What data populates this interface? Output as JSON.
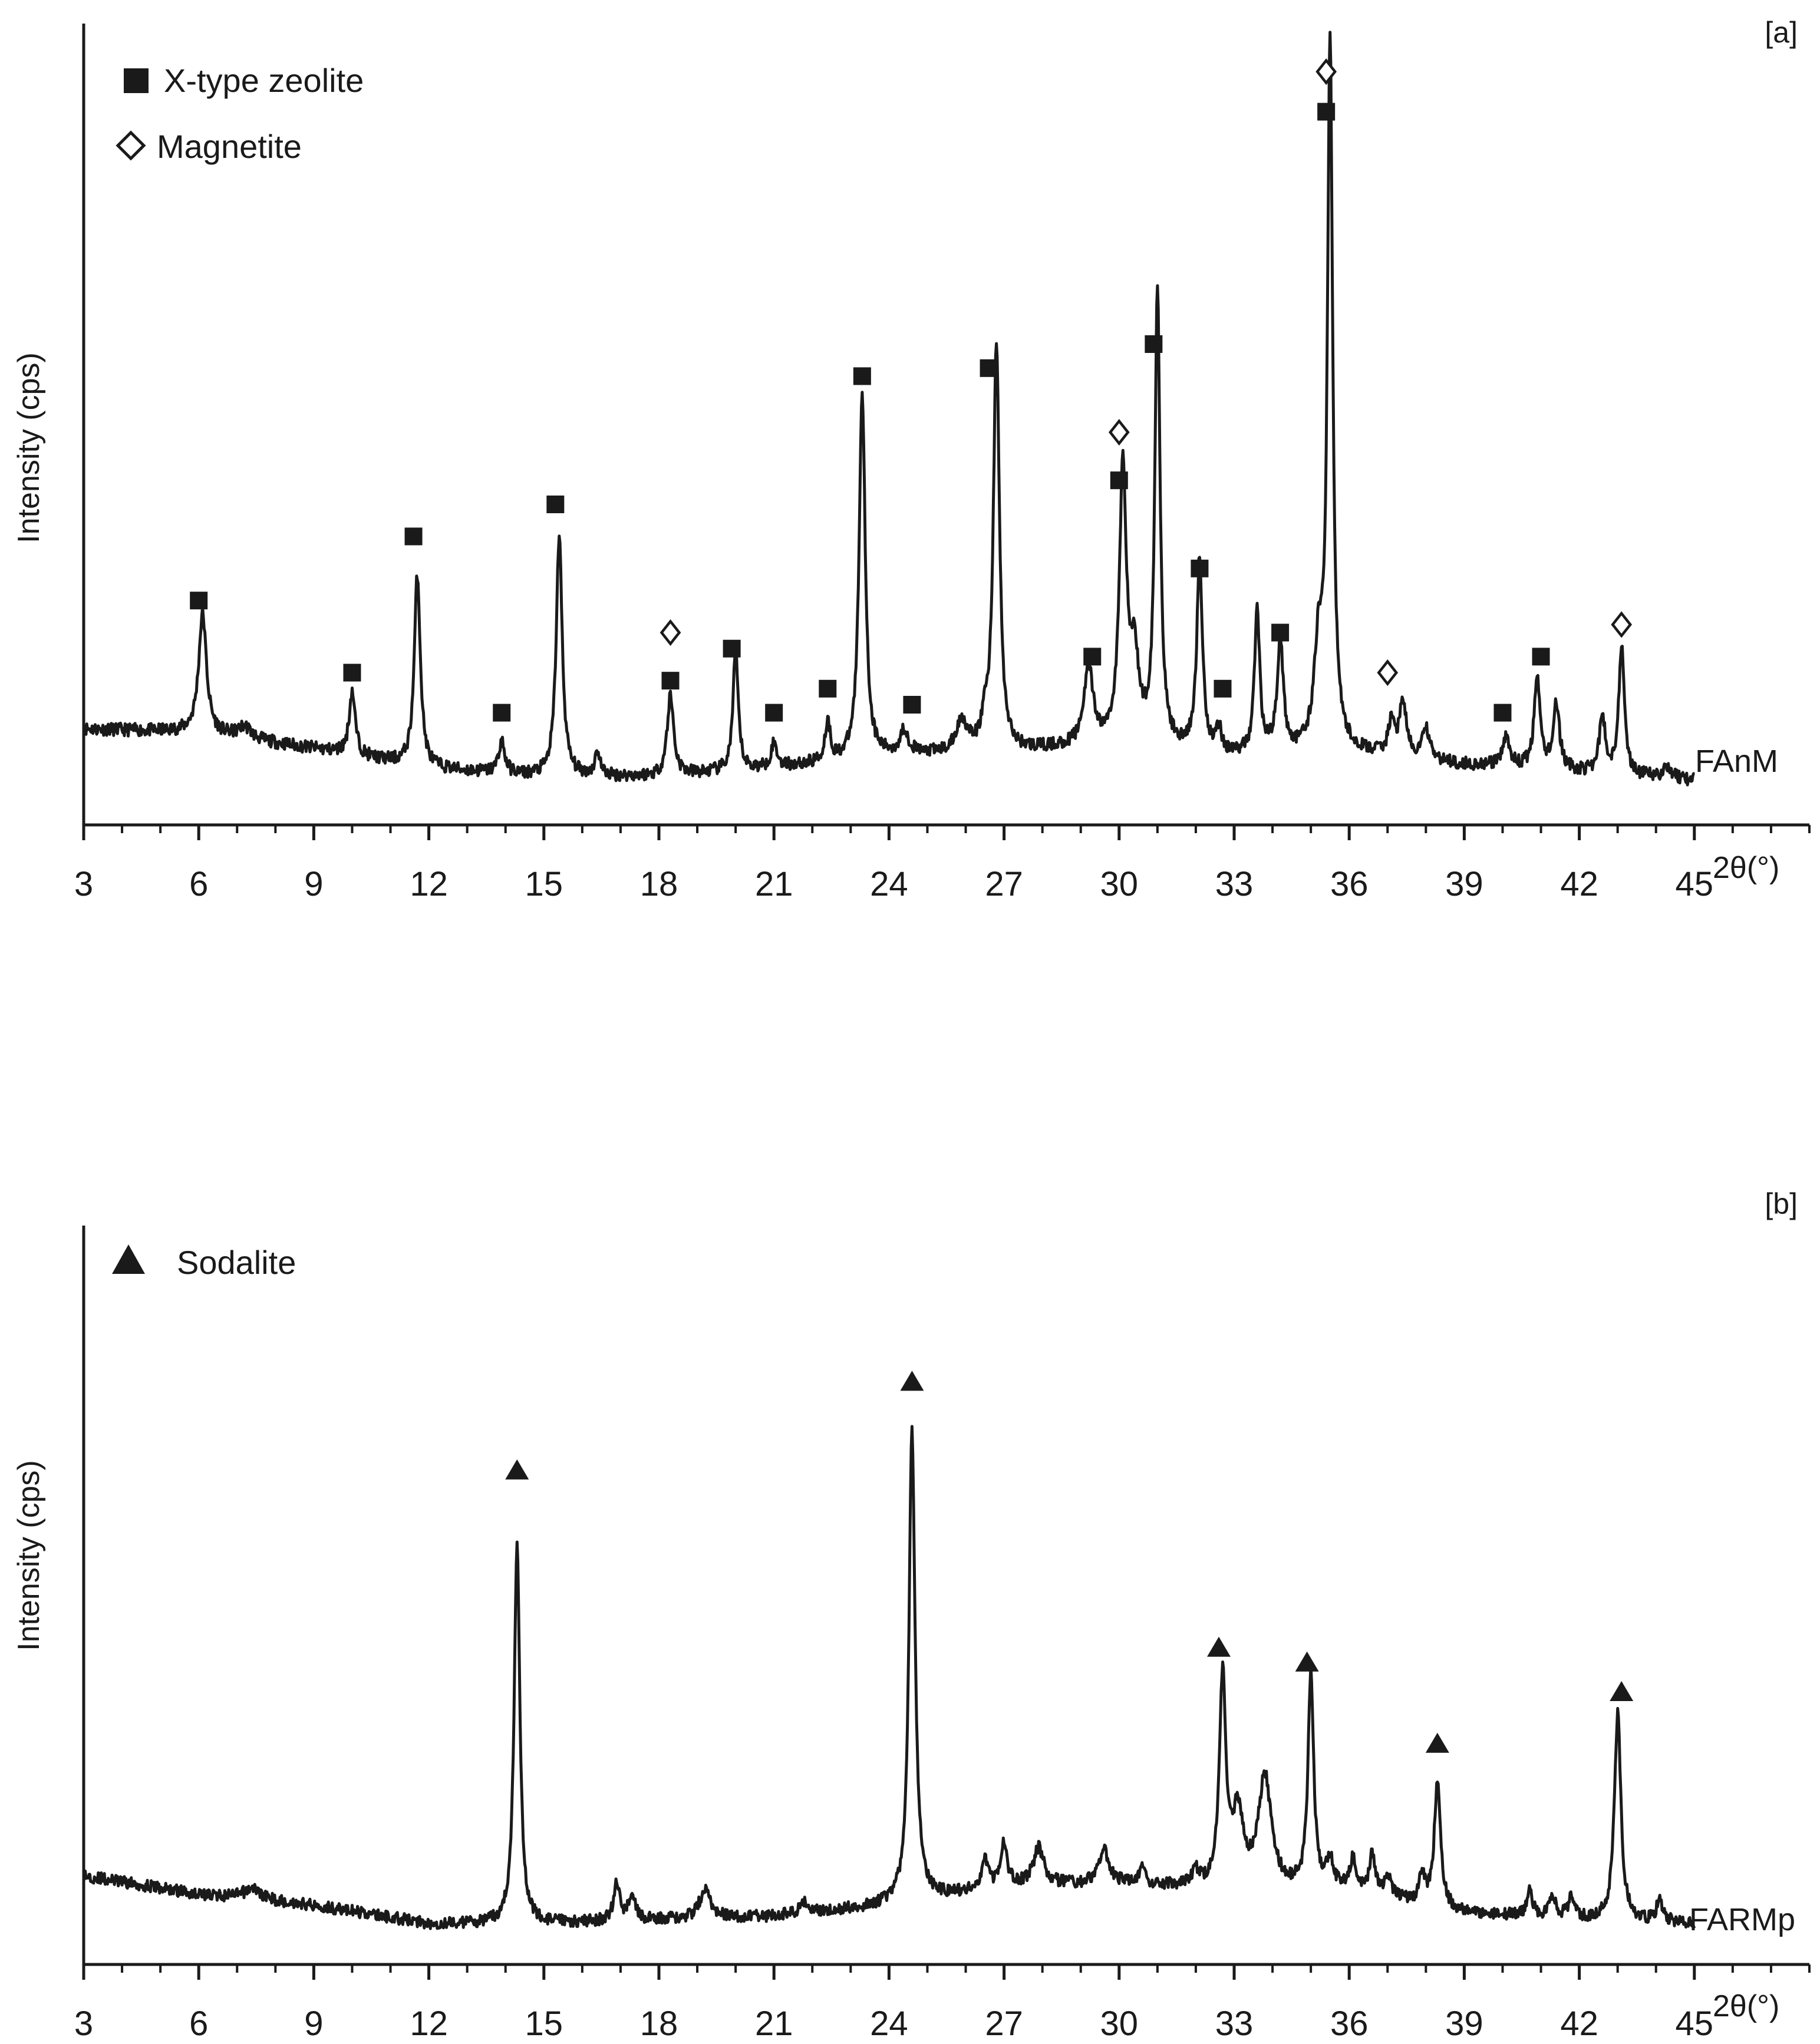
{
  "colors": {
    "ink": "#1a1a1a",
    "background": "#ffffff"
  },
  "chart_data": [
    {
      "type": "line",
      "panel_label": "[a]",
      "sample_label": "FAnM",
      "xlabel": "2θ(°)",
      "ylabel": "Intensity (cps)",
      "xlim": [
        3,
        48
      ],
      "ylim": [
        0,
        100
      ],
      "x_ticks": [
        3,
        6,
        9,
        12,
        15,
        18,
        21,
        24,
        27,
        30,
        33,
        36,
        39,
        42,
        45
      ],
      "x_tick_labels": [
        "3",
        "6",
        "9",
        "12",
        "15",
        "18",
        "21",
        "24",
        "27",
        "30",
        "33",
        "36",
        "39",
        "42",
        "45"
      ],
      "legend": [
        {
          "label": "X-type zeolite",
          "marker": "filled-square"
        },
        {
          "label": "Magnetite",
          "marker": "open-diamond"
        }
      ],
      "legend_position": "top-left",
      "grid": false,
      "baseline": [
        [
          3,
          12
        ],
        [
          6,
          11.5
        ],
        [
          9,
          9.5
        ],
        [
          12,
          7
        ],
        [
          15,
          6
        ],
        [
          18,
          6
        ],
        [
          21,
          7
        ],
        [
          24,
          8.5
        ],
        [
          27,
          9
        ],
        [
          30,
          10
        ],
        [
          33,
          8.5
        ],
        [
          36,
          9
        ],
        [
          39,
          7.5
        ],
        [
          42,
          6.5
        ],
        [
          45,
          5.5
        ]
      ],
      "peaks": [
        {
          "x": 6.1,
          "height": 15,
          "width": 0.18
        },
        {
          "x": 7.2,
          "height": 1.5,
          "width": 0.3
        },
        {
          "x": 10.0,
          "height": 8,
          "width": 0.14
        },
        {
          "x": 11.7,
          "height": 24,
          "width": 0.14
        },
        {
          "x": 13.9,
          "height": 4,
          "width": 0.14
        },
        {
          "x": 15.4,
          "height": 30,
          "width": 0.14
        },
        {
          "x": 16.4,
          "height": 3,
          "width": 0.12
        },
        {
          "x": 18.3,
          "height": 10,
          "width": 0.15
        },
        {
          "x": 20.0,
          "height": 15,
          "width": 0.12
        },
        {
          "x": 21.0,
          "height": 3,
          "width": 0.15
        },
        {
          "x": 22.4,
          "height": 5,
          "width": 0.12
        },
        {
          "x": 23.3,
          "height": 46,
          "width": 0.14
        },
        {
          "x": 24.4,
          "height": 3,
          "width": 0.2
        },
        {
          "x": 25.9,
          "height": 4,
          "width": 0.25
        },
        {
          "x": 26.5,
          "height": 3,
          "width": 0.15
        },
        {
          "x": 26.8,
          "height": 51,
          "width": 0.14
        },
        {
          "x": 29.2,
          "height": 10,
          "width": 0.2
        },
        {
          "x": 30.1,
          "height": 34,
          "width": 0.16
        },
        {
          "x": 30.4,
          "height": 10,
          "width": 0.2
        },
        {
          "x": 31.0,
          "height": 57,
          "width": 0.12
        },
        {
          "x": 32.1,
          "height": 24,
          "width": 0.13
        },
        {
          "x": 32.6,
          "height": 3,
          "width": 0.12
        },
        {
          "x": 33.6,
          "height": 18,
          "width": 0.12
        },
        {
          "x": 34.2,
          "height": 14,
          "width": 0.14
        },
        {
          "x": 35.2,
          "height": 12,
          "width": 0.2
        },
        {
          "x": 35.5,
          "height": 88,
          "width": 0.12
        },
        {
          "x": 37.1,
          "height": 4,
          "width": 0.15
        },
        {
          "x": 37.4,
          "height": 7,
          "width": 0.15
        },
        {
          "x": 38.0,
          "height": 4,
          "width": 0.15
        },
        {
          "x": 40.1,
          "height": 4,
          "width": 0.15
        },
        {
          "x": 40.9,
          "height": 11,
          "width": 0.14
        },
        {
          "x": 41.4,
          "height": 8,
          "width": 0.15
        },
        {
          "x": 42.6,
          "height": 7,
          "width": 0.14
        },
        {
          "x": 43.1,
          "height": 16,
          "width": 0.13
        },
        {
          "x": 44.3,
          "height": 1.5,
          "width": 0.2
        }
      ],
      "phase_markers": [
        {
          "x": 6.0,
          "y": 28,
          "marker": "filled-square"
        },
        {
          "x": 10.0,
          "y": 19,
          "marker": "filled-square"
        },
        {
          "x": 11.6,
          "y": 36,
          "marker": "filled-square"
        },
        {
          "x": 13.9,
          "y": 14,
          "marker": "filled-square"
        },
        {
          "x": 15.3,
          "y": 40,
          "marker": "filled-square"
        },
        {
          "x": 18.3,
          "y": 18,
          "marker": "filled-square"
        },
        {
          "x": 18.3,
          "y": 24,
          "marker": "open-diamond"
        },
        {
          "x": 19.9,
          "y": 22,
          "marker": "filled-square"
        },
        {
          "x": 21.0,
          "y": 14,
          "marker": "filled-square"
        },
        {
          "x": 22.4,
          "y": 17,
          "marker": "filled-square"
        },
        {
          "x": 23.3,
          "y": 56,
          "marker": "filled-square"
        },
        {
          "x": 24.6,
          "y": 15,
          "marker": "filled-square"
        },
        {
          "x": 26.6,
          "y": 57,
          "marker": "filled-square"
        },
        {
          "x": 29.3,
          "y": 21,
          "marker": "filled-square"
        },
        {
          "x": 30.0,
          "y": 43,
          "marker": "filled-square"
        },
        {
          "x": 30.0,
          "y": 49,
          "marker": "open-diamond"
        },
        {
          "x": 30.9,
          "y": 60,
          "marker": "filled-square"
        },
        {
          "x": 32.1,
          "y": 32,
          "marker": "filled-square"
        },
        {
          "x": 32.7,
          "y": 17,
          "marker": "filled-square"
        },
        {
          "x": 34.2,
          "y": 24,
          "marker": "filled-square"
        },
        {
          "x": 35.4,
          "y": 89,
          "marker": "filled-square"
        },
        {
          "x": 35.4,
          "y": 94,
          "marker": "open-diamond"
        },
        {
          "x": 37.0,
          "y": 19,
          "marker": "open-diamond"
        },
        {
          "x": 40.0,
          "y": 14,
          "marker": "filled-square"
        },
        {
          "x": 41.0,
          "y": 21,
          "marker": "filled-square"
        },
        {
          "x": 43.1,
          "y": 25,
          "marker": "open-diamond"
        }
      ]
    },
    {
      "type": "line",
      "panel_label": "[b]",
      "sample_label": "FARMp",
      "xlabel": "2θ(°)",
      "ylabel": "Intensity (cps)",
      "xlim": [
        3,
        48
      ],
      "ylim": [
        0,
        100
      ],
      "x_ticks": [
        3,
        6,
        9,
        12,
        15,
        18,
        21,
        24,
        27,
        30,
        33,
        36,
        39,
        42,
        45
      ],
      "x_tick_labels": [
        "3",
        "6",
        "9",
        "12",
        "15",
        "18",
        "21",
        "24",
        "27",
        "30",
        "33",
        "36",
        "39",
        "42",
        "45"
      ],
      "legend": [
        {
          "label": "Sodalite",
          "marker": "filled-triangle"
        }
      ],
      "legend_position": "top-left",
      "grid": false,
      "baseline": [
        [
          3,
          12
        ],
        [
          6,
          9.5
        ],
        [
          9,
          8
        ],
        [
          12,
          5.5
        ],
        [
          15,
          5.5
        ],
        [
          18,
          6
        ],
        [
          21,
          6.5
        ],
        [
          24,
          8
        ],
        [
          27,
          10.5
        ],
        [
          30,
          11
        ],
        [
          33,
          10
        ],
        [
          36,
          10
        ],
        [
          39,
          7
        ],
        [
          42,
          6
        ],
        [
          45,
          5.5
        ]
      ],
      "peaks": [
        {
          "x": 7.4,
          "height": 1.5,
          "width": 0.4
        },
        {
          "x": 14.3,
          "height": 52,
          "width": 0.13
        },
        {
          "x": 16.9,
          "height": 5,
          "width": 0.14
        },
        {
          "x": 17.3,
          "height": 4,
          "width": 0.14
        },
        {
          "x": 19.2,
          "height": 4,
          "width": 0.25
        },
        {
          "x": 21.8,
          "height": 1.5,
          "width": 0.2
        },
        {
          "x": 24.6,
          "height": 64,
          "width": 0.14
        },
        {
          "x": 26.5,
          "height": 4,
          "width": 0.15
        },
        {
          "x": 27.0,
          "height": 6,
          "width": 0.14
        },
        {
          "x": 27.9,
          "height": 5,
          "width": 0.25
        },
        {
          "x": 29.6,
          "height": 5,
          "width": 0.2
        },
        {
          "x": 30.6,
          "height": 2,
          "width": 0.12
        },
        {
          "x": 32.0,
          "height": 2,
          "width": 0.15
        },
        {
          "x": 32.7,
          "height": 28,
          "width": 0.15
        },
        {
          "x": 33.1,
          "height": 10,
          "width": 0.25
        },
        {
          "x": 33.8,
          "height": 15,
          "width": 0.3
        },
        {
          "x": 35.0,
          "height": 29,
          "width": 0.13
        },
        {
          "x": 35.5,
          "height": 4,
          "width": 0.15
        },
        {
          "x": 36.1,
          "height": 4,
          "width": 0.15
        },
        {
          "x": 36.6,
          "height": 5,
          "width": 0.14
        },
        {
          "x": 37.0,
          "height": 3,
          "width": 0.14
        },
        {
          "x": 37.9,
          "height": 4,
          "width": 0.12
        },
        {
          "x": 38.3,
          "height": 17,
          "width": 0.14
        },
        {
          "x": 40.7,
          "height": 4,
          "width": 0.12
        },
        {
          "x": 41.3,
          "height": 3,
          "width": 0.15
        },
        {
          "x": 41.8,
          "height": 3,
          "width": 0.15
        },
        {
          "x": 43.0,
          "height": 28,
          "width": 0.15
        },
        {
          "x": 44.1,
          "height": 3,
          "width": 0.15
        }
      ],
      "phase_markers": [
        {
          "x": 14.3,
          "y": 67,
          "marker": "filled-triangle"
        },
        {
          "x": 24.6,
          "y": 79,
          "marker": "filled-triangle"
        },
        {
          "x": 32.6,
          "y": 43,
          "marker": "filled-triangle"
        },
        {
          "x": 34.9,
          "y": 41,
          "marker": "filled-triangle"
        },
        {
          "x": 38.3,
          "y": 30,
          "marker": "filled-triangle"
        },
        {
          "x": 43.1,
          "y": 37,
          "marker": "filled-triangle"
        }
      ]
    }
  ]
}
